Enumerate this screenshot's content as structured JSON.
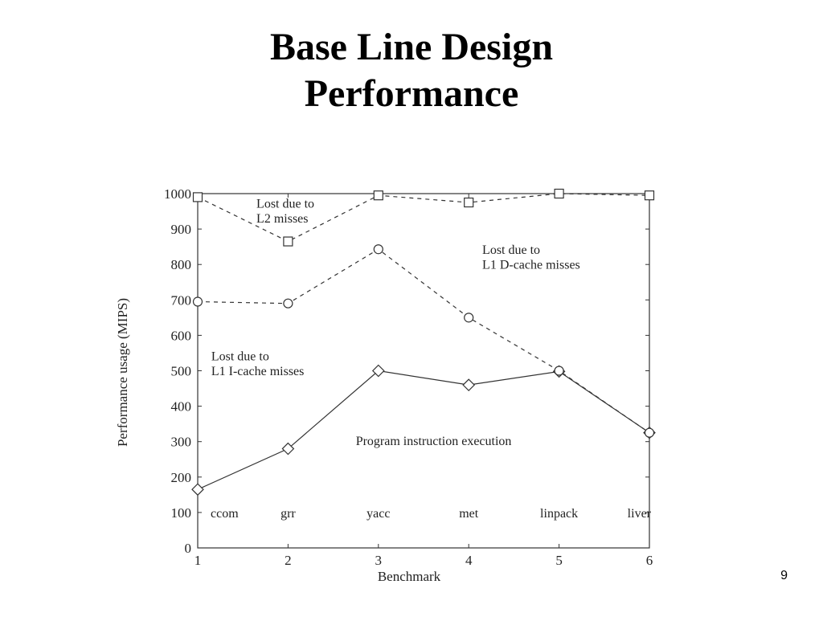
{
  "slide": {
    "title_line1": "Base Line Design",
    "title_line2": "Performance",
    "page_number": "9"
  },
  "chart_data": {
    "type": "line",
    "xlabel": "Benchmark",
    "ylabel": "Performance usage (MIPS)",
    "x": [
      1,
      2,
      3,
      4,
      5,
      6
    ],
    "xlim": [
      1,
      6
    ],
    "ylim": [
      0,
      1000
    ],
    "x_ticks": [
      "1",
      "2",
      "3",
      "4",
      "5",
      "6"
    ],
    "y_ticks": [
      "0",
      "100",
      "200",
      "300",
      "400",
      "500",
      "600",
      "700",
      "800",
      "900",
      "1000"
    ],
    "y_tick_values": [
      0,
      100,
      200,
      300,
      400,
      500,
      600,
      700,
      800,
      900,
      1000
    ],
    "grid": false,
    "benchmark_labels": [
      "ccom",
      "grr",
      "yacc",
      "met",
      "linpack",
      "liver"
    ],
    "series": [
      {
        "values": [
          165,
          280,
          500,
          460,
          498,
          325
        ],
        "marker": "diamond",
        "line": "solid"
      },
      {
        "values": [
          695,
          690,
          843,
          650,
          500,
          325
        ],
        "marker": "circle",
        "line": "dashed"
      },
      {
        "values": [
          990,
          865,
          995,
          975,
          1000,
          995
        ],
        "marker": "square",
        "line": "dashed"
      }
    ],
    "annotations": [
      {
        "text": "Lost due to",
        "x": 1.65,
        "y": 960
      },
      {
        "text": "L2 misses",
        "x": 1.65,
        "y": 918
      },
      {
        "text": "Lost due to",
        "x": 4.15,
        "y": 830
      },
      {
        "text": "L1 D-cache misses",
        "x": 4.15,
        "y": 788
      },
      {
        "text": "Lost due to",
        "x": 1.15,
        "y": 530
      },
      {
        "text": "L1 I-cache misses",
        "x": 1.15,
        "y": 488
      },
      {
        "text": "Program instruction execution",
        "x": 2.75,
        "y": 290
      }
    ]
  }
}
